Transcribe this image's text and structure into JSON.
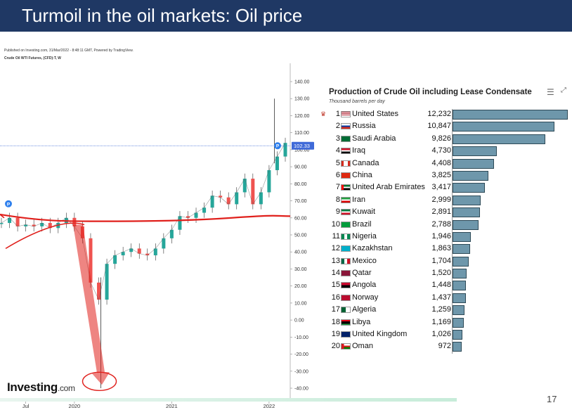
{
  "slide": {
    "title": "Turmoil in the oil markets: Oil price",
    "page_number": "17"
  },
  "price_chart": {
    "published": "Published on Investing.com, 31/Mar/2022 - 8:48:11 GMT, Powered by TradingView.",
    "instrument": "Crude Oil WTI Futures, (CFD):T, W",
    "brand": "Investing",
    "brand_suffix": ".com",
    "price_label": "102.33",
    "marker_label": "P",
    "y_ticks": [
      "140.00",
      "130.00",
      "120.00",
      "110.00",
      "100.00",
      "90.00",
      "80.00",
      "70.00",
      "60.00",
      "50.00",
      "40.00",
      "30.00",
      "20.00",
      "10.00",
      "0.00",
      "-10.00",
      "-20.00",
      "-30.00",
      "-40.00"
    ],
    "x_ticks": [
      "Jul",
      "2020",
      "2021",
      "2022"
    ],
    "colors": {
      "up": "#26a69a",
      "down": "#ef5350",
      "annotation": "#e0201c",
      "price_line": "#3f6ad8"
    }
  },
  "chart_data": {
    "type": "line",
    "title": "",
    "xlabel": "",
    "ylabel": "",
    "ylim": [
      -40,
      140
    ],
    "x_ticks": [
      "Jul",
      "2020",
      "2021",
      "2022"
    ],
    "x": [
      "2019-04",
      "2019-05",
      "2019-06",
      "2019-07",
      "2019-08",
      "2019-09",
      "2019-10",
      "2019-11",
      "2019-12",
      "2020-01",
      "2020-02",
      "2020-03",
      "2020-04",
      "2020-05",
      "2020-06",
      "2020-07",
      "2020-08",
      "2020-09",
      "2020-10",
      "2020-11",
      "2020-12",
      "2021-01",
      "2021-02",
      "2021-03",
      "2021-04",
      "2021-05",
      "2021-06",
      "2021-07",
      "2021-08",
      "2021-09",
      "2021-10",
      "2021-11",
      "2021-12",
      "2022-01",
      "2022-02",
      "2022-03"
    ],
    "series": [
      {
        "values": [
          57,
          60,
          55,
          56,
          55,
          57,
          54,
          57,
          60,
          55,
          48,
          22,
          12,
          33,
          38,
          40,
          42,
          39,
          38,
          42,
          48,
          53,
          61,
          60,
          63,
          66,
          73,
          72,
          68,
          75,
          83,
          68,
          75,
          88,
          96,
          104
        ]
      }
    ],
    "current_price": 102.33
  },
  "production_chart": {
    "title": "Production of Crude Oil including Lease Condensate",
    "subtitle": "Thousand barrels per day",
    "menu_icon": "hamburger-menu-icon",
    "expand_icon": "expand-icon",
    "countries": [
      {
        "rank": "1",
        "name": "United States",
        "value_label": "12,232",
        "value": 12232,
        "flag": "us"
      },
      {
        "rank": "2",
        "name": "Russia",
        "value_label": "10,847",
        "value": 10847,
        "flag": "ru"
      },
      {
        "rank": "3",
        "name": "Saudi Arabia",
        "value_label": "9,826",
        "value": 9826,
        "flag": "sa"
      },
      {
        "rank": "4",
        "name": "Iraq",
        "value_label": "4,730",
        "value": 4730,
        "flag": "iq"
      },
      {
        "rank": "5",
        "name": "Canada",
        "value_label": "4,408",
        "value": 4408,
        "flag": "ca"
      },
      {
        "rank": "6",
        "name": "China",
        "value_label": "3,825",
        "value": 3825,
        "flag": "cn"
      },
      {
        "rank": "7",
        "name": "United Arab Emirates",
        "value_label": "3,417",
        "value": 3417,
        "flag": "ae"
      },
      {
        "rank": "8",
        "name": "Iran",
        "value_label": "2,999",
        "value": 2999,
        "flag": "ir"
      },
      {
        "rank": "9",
        "name": "Kuwait",
        "value_label": "2,891",
        "value": 2891,
        "flag": "kw"
      },
      {
        "rank": "10",
        "name": "Brazil",
        "value_label": "2,788",
        "value": 2788,
        "flag": "br"
      },
      {
        "rank": "11",
        "name": "Nigeria",
        "value_label": "1,946",
        "value": 1946,
        "flag": "ng"
      },
      {
        "rank": "12",
        "name": "Kazakhstan",
        "value_label": "1,863",
        "value": 1863,
        "flag": "kz"
      },
      {
        "rank": "13",
        "name": "Mexico",
        "value_label": "1,704",
        "value": 1704,
        "flag": "mx"
      },
      {
        "rank": "14",
        "name": "Qatar",
        "value_label": "1,520",
        "value": 1520,
        "flag": "qa"
      },
      {
        "rank": "15",
        "name": "Angola",
        "value_label": "1,448",
        "value": 1448,
        "flag": "ao"
      },
      {
        "rank": "16",
        "name": "Norway",
        "value_label": "1,437",
        "value": 1437,
        "flag": "no"
      },
      {
        "rank": "17",
        "name": "Algeria",
        "value_label": "1,259",
        "value": 1259,
        "flag": "dz"
      },
      {
        "rank": "18",
        "name": "Libya",
        "value_label": "1,169",
        "value": 1169,
        "flag": "ly"
      },
      {
        "rank": "19",
        "name": "United Kingdom",
        "value_label": "1,026",
        "value": 1026,
        "flag": "gb"
      },
      {
        "rank": "20",
        "name": "Oman",
        "value_label": "972",
        "value": 972,
        "flag": "om"
      }
    ],
    "bar_color": "#6e97ab"
  }
}
